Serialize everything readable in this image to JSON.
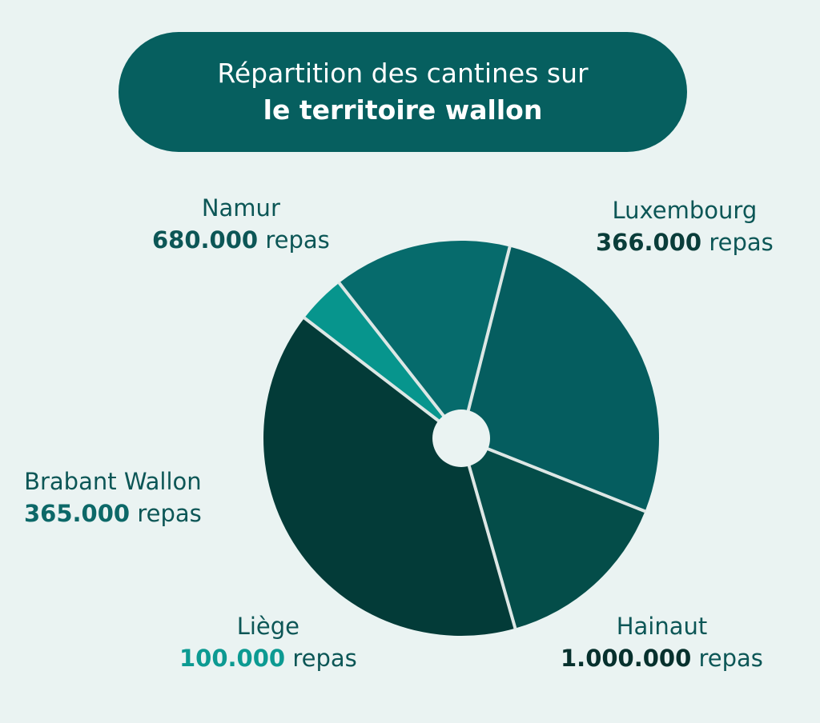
{
  "title": {
    "line1": "Répartition des cantines sur",
    "line2": "le territoire wallon"
  },
  "colors": {
    "background": "#eaf3f2",
    "title_bg": "#065f5f",
    "separator": "#dde7e5"
  },
  "chart_data": {
    "type": "pie",
    "unit": "repas",
    "slices": [
      {
        "name": "Namur",
        "value": 680000,
        "value_label": "680.000",
        "color": "#055d5f",
        "label_color": "#0c5656",
        "value_color": "#0c5656"
      },
      {
        "name": "Luxembourg",
        "value": 366000,
        "value_label": "366.000",
        "color": "#044d49",
        "label_color": "#0c5656",
        "value_color": "#0a3d3a"
      },
      {
        "name": "Hainaut",
        "value": 1000000,
        "value_label": "1.000.000",
        "color": "#033b38",
        "label_color": "#0c5656",
        "value_color": "#06302d"
      },
      {
        "name": "Liège",
        "value": 100000,
        "value_label": "100.000",
        "color": "#07958d",
        "label_color": "#0c5656",
        "value_color": "#0c9a92"
      },
      {
        "name": "Brabant Wallon",
        "value": 365000,
        "value_label": "365.000",
        "color": "#066b6c",
        "label_color": "#0c5656",
        "value_color": "#0c6868"
      }
    ]
  }
}
